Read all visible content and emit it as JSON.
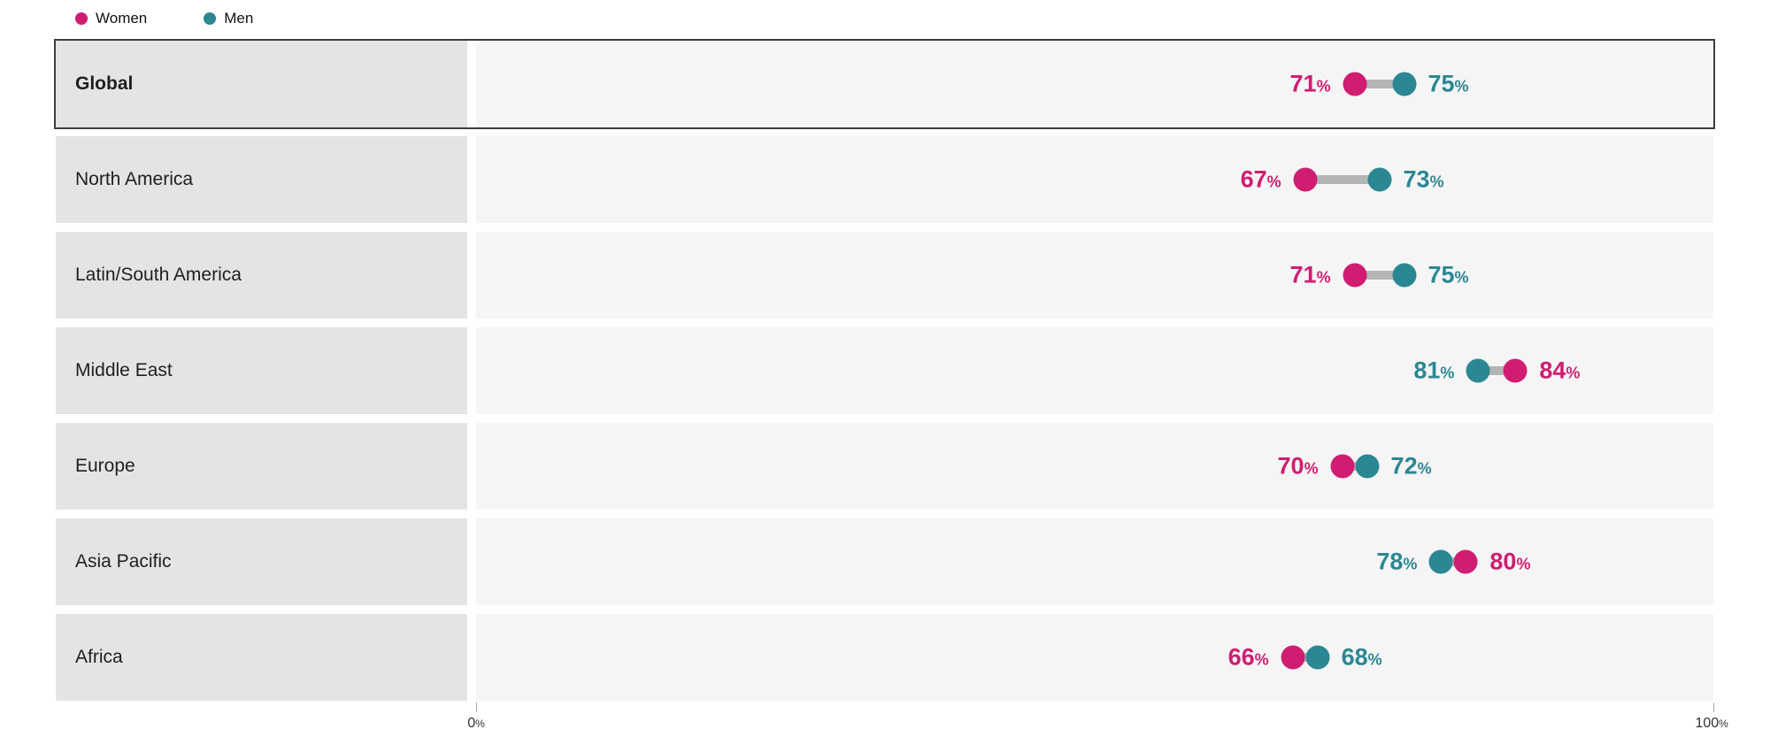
{
  "colors": {
    "women": "#d01d72",
    "men": "#2b8793",
    "connector": "#b4b4b4",
    "label-box": "#e4e4e6",
    "plot-box": "#f5f5f5",
    "highlight-border": "#3d3d3d",
    "text": "#1f1f1f",
    "axis-text": "#333333",
    "tick": "#a9a9a9"
  },
  "strings": {
    "pct": "%"
  },
  "legend": {
    "items": [
      {
        "label": "Women",
        "color": "#d01d72"
      },
      {
        "label": "Men",
        "color": "#2b8793"
      }
    ]
  },
  "axis": {
    "min": "0",
    "max": "100"
  },
  "rows": [
    {
      "label": "Global",
      "women": 71,
      "men": 75,
      "lo": {
        "value": 71,
        "series": "women"
      },
      "hi": {
        "value": 75,
        "series": "men"
      }
    },
    {
      "label": "North America",
      "women": 67,
      "men": 73,
      "lo": {
        "value": 67,
        "series": "women"
      },
      "hi": {
        "value": 73,
        "series": "men"
      }
    },
    {
      "label": "Latin/South America",
      "women": 71,
      "men": 75,
      "lo": {
        "value": 71,
        "series": "women"
      },
      "hi": {
        "value": 75,
        "series": "men"
      }
    },
    {
      "label": "Middle East",
      "women": 84,
      "men": 81,
      "lo": {
        "value": 81,
        "series": "men"
      },
      "hi": {
        "value": 84,
        "series": "women"
      }
    },
    {
      "label": "Europe",
      "women": 70,
      "men": 72,
      "lo": {
        "value": 70,
        "series": "women"
      },
      "hi": {
        "value": 72,
        "series": "men"
      }
    },
    {
      "label": "Asia Pacific",
      "women": 80,
      "men": 78,
      "lo": {
        "value": 78,
        "series": "men"
      },
      "hi": {
        "value": 80,
        "series": "women"
      }
    },
    {
      "label": "Africa",
      "women": 66,
      "men": 68,
      "lo": {
        "value": 66,
        "series": "women"
      },
      "hi": {
        "value": 68,
        "series": "men"
      }
    }
  ],
  "chart_data": {
    "type": "dumbbell",
    "categories": [
      "Global",
      "North America",
      "Latin/South America",
      "Middle East",
      "Europe",
      "Asia Pacific",
      "Africa"
    ],
    "series": [
      {
        "name": "Women",
        "color": "#d01d72",
        "values": [
          71,
          67,
          71,
          84,
          70,
          80,
          66
        ]
      },
      {
        "name": "Men",
        "color": "#2b8793",
        "values": [
          75,
          73,
          75,
          81,
          72,
          78,
          68
        ]
      }
    ],
    "xlabel": "",
    "ylabel": "",
    "xlim": [
      0,
      100
    ],
    "x_tick_labels": [
      "0%",
      "100%"
    ],
    "grid": false,
    "legend_position": "top-left",
    "highlighted_category": "Global",
    "value_suffix": "%"
  }
}
